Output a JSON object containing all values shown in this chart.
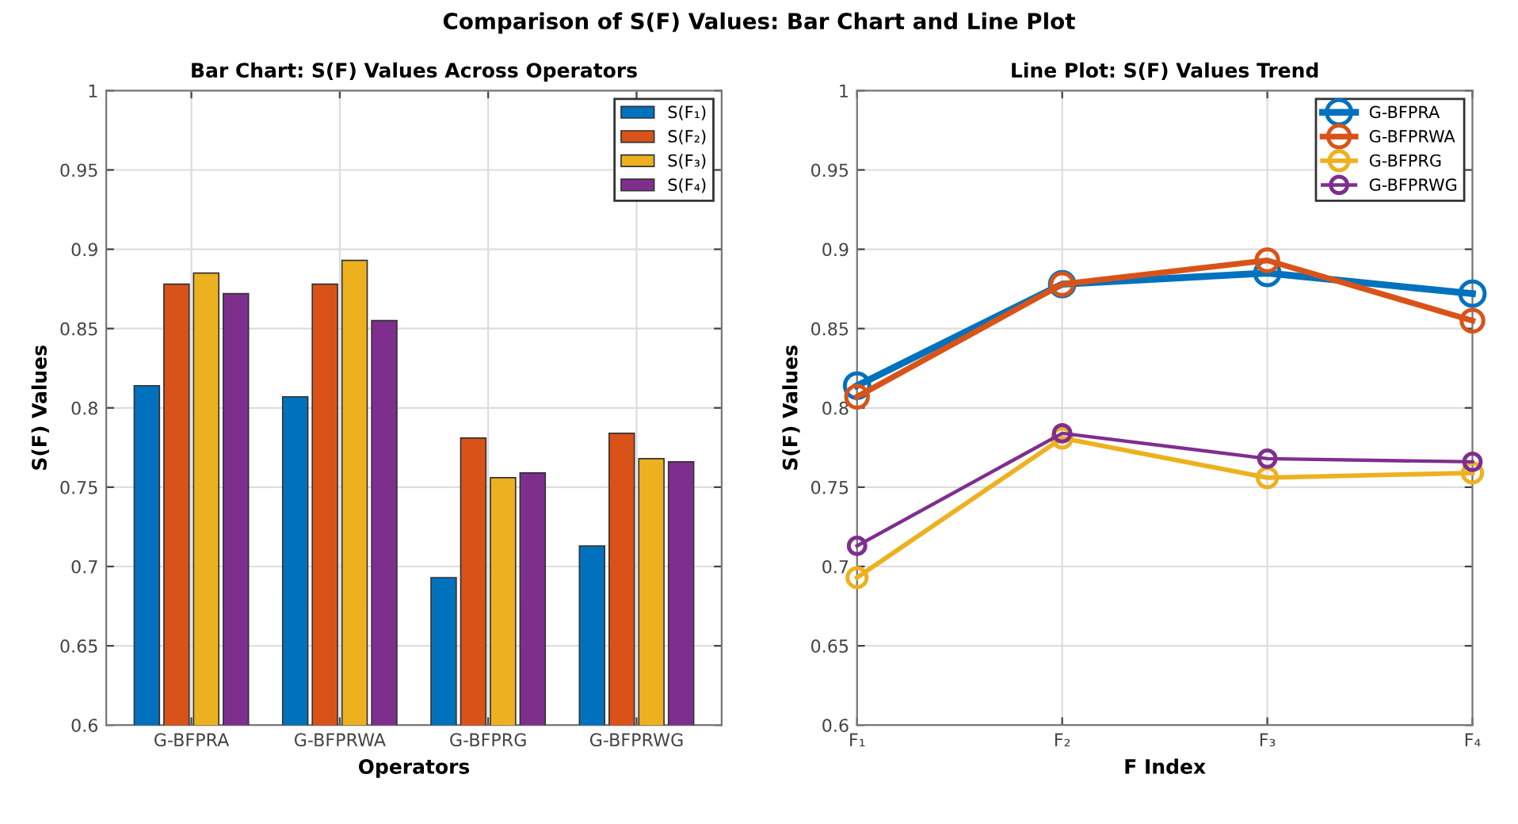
{
  "chart_data": [
    {
      "type": "bar",
      "title": "Bar Chart: S(F) Values Across Operators",
      "xlabel": "Operators",
      "ylabel": "S(F) Values",
      "annotations": [
        "Comparison of S(F) Values: Bar Chart and Line Plot"
      ],
      "categories": [
        "G-BFPRA",
        "G-BFPRWA",
        "G-BFPRG",
        "G-BFPRWG"
      ],
      "series": [
        {
          "name": "S(F₁)",
          "color": "#0072bd",
          "values": [
            0.814,
            0.807,
            0.693,
            0.713
          ]
        },
        {
          "name": "S(F₂)",
          "color": "#d95319",
          "values": [
            0.878,
            0.878,
            0.781,
            0.784
          ]
        },
        {
          "name": "S(F₃)",
          "color": "#edb120",
          "values": [
            0.885,
            0.893,
            0.756,
            0.768
          ]
        },
        {
          "name": "S(F₄)",
          "color": "#7e2f8e",
          "values": [
            0.872,
            0.855,
            0.759,
            0.766
          ]
        }
      ],
      "ylim": [
        0.6,
        1
      ],
      "yticks": [
        0.6,
        0.65,
        0.7,
        0.75,
        0.8,
        0.85,
        0.9,
        0.95,
        1
      ],
      "grid": true,
      "legend": "top right"
    },
    {
      "type": "line",
      "title": "Line Plot: S(F) Values Trend",
      "xlabel": "F Index",
      "ylabel": "S(F) Values",
      "categories": [
        "F₁",
        "F₂",
        "F₃",
        "F₄"
      ],
      "series": [
        {
          "name": "G-BFPRA",
          "color": "#0072bd",
          "values": [
            0.814,
            0.878,
            0.885,
            0.872
          ]
        },
        {
          "name": "G-BFPRWA",
          "color": "#d95319",
          "values": [
            0.807,
            0.878,
            0.893,
            0.855
          ]
        },
        {
          "name": "G-BFPRG",
          "color": "#edb120",
          "values": [
            0.693,
            0.781,
            0.756,
            0.759
          ]
        },
        {
          "name": "G-BFPRWG",
          "color": "#7e2f8e",
          "values": [
            0.713,
            0.784,
            0.768,
            0.766
          ]
        }
      ],
      "ylim": [
        0.6,
        1
      ],
      "yticks": [
        0.6,
        0.65,
        0.7,
        0.75,
        0.8,
        0.85,
        0.9,
        0.95,
        1
      ],
      "grid": true,
      "legend": "top right",
      "marker": "circle",
      "line_style": "solid"
    }
  ]
}
